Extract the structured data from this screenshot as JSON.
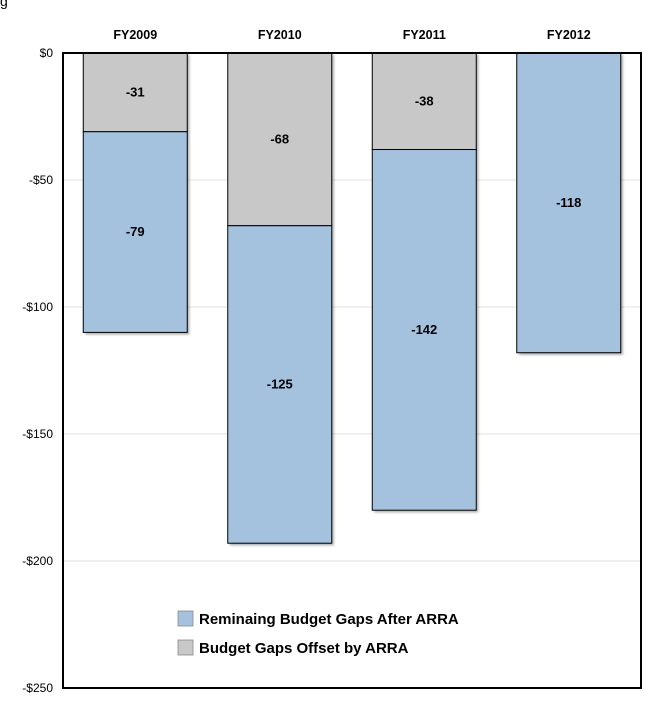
{
  "header": {
    "clipped_text": "g"
  },
  "chart_data": {
    "type": "bar",
    "stacked": true,
    "categories": [
      "FY2009",
      "FY2010",
      "FY2011",
      "FY2012"
    ],
    "series": [
      {
        "name": "Budget Gaps Offset by ARRA",
        "color": "#c8c8c8",
        "values": [
          -31,
          -68,
          -38,
          0
        ]
      },
      {
        "name": "Reminaing Budget Gaps After ARRA",
        "color": "#a4c2de",
        "values": [
          -79,
          -125,
          -142,
          -118
        ]
      }
    ],
    "data_labels": [
      [
        "-31",
        "-68",
        "-38",
        ""
      ],
      [
        "-79",
        "-125",
        "-142",
        "-118"
      ]
    ],
    "y_ticks": [
      0,
      -50,
      -100,
      -150,
      -200,
      -250
    ],
    "y_tick_labels": [
      "$0",
      "-$50",
      "-$100",
      "-$150",
      "-$200",
      "-$250"
    ],
    "ylim": [
      -250,
      0
    ],
    "category_axis_position": "top",
    "grid": true,
    "legend": {
      "placement": "bottom-center",
      "entries": [
        {
          "label": "Reminaing Budget Gaps After ARRA",
          "color": "#a4c2de"
        },
        {
          "label": "Budget Gaps Offset by ARRA",
          "color": "#c8c8c8"
        }
      ]
    }
  }
}
